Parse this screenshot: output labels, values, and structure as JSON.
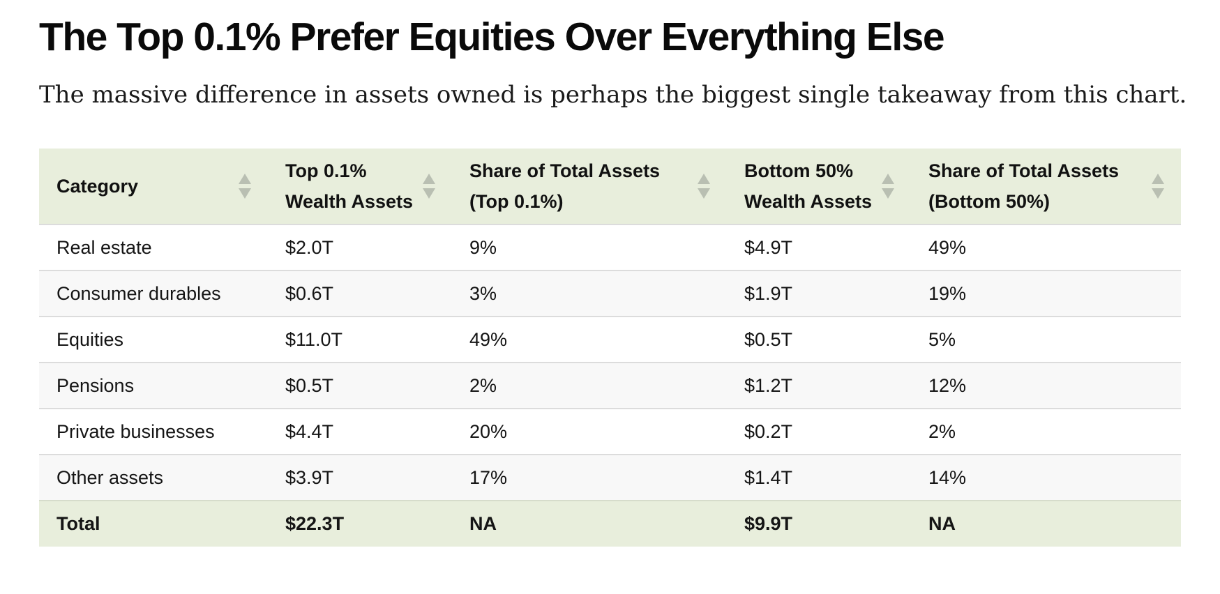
{
  "title": "The Top 0.1% Prefer Equities Over Everything Else",
  "subtitle": "The massive difference in assets owned is perhaps the biggest single takeaway from this chart.",
  "table": {
    "headers": [
      {
        "line1": "Category",
        "line2": ""
      },
      {
        "line1": "Top 0.1%",
        "line2": "Wealth Assets"
      },
      {
        "line1": "Share of Total Assets",
        "line2": "(Top 0.1%)"
      },
      {
        "line1": "Bottom 50%",
        "line2": "Wealth Assets"
      },
      {
        "line1": "Share of Total Assets",
        "line2": "(Bottom 50%)"
      }
    ],
    "rows": [
      [
        "Real estate",
        "$2.0T",
        "9%",
        "$4.9T",
        "49%"
      ],
      [
        "Consumer durables",
        "$0.6T",
        "3%",
        "$1.9T",
        "19%"
      ],
      [
        "Equities",
        "$11.0T",
        "49%",
        "$0.5T",
        "5%"
      ],
      [
        "Pensions",
        "$0.5T",
        "2%",
        "$1.2T",
        "12%"
      ],
      [
        "Private businesses",
        "$4.4T",
        "20%",
        "$0.2T",
        "2%"
      ],
      [
        "Other assets",
        "$3.9T",
        "17%",
        "$1.4T",
        "14%"
      ]
    ],
    "total": [
      "Total",
      "$22.3T",
      "NA",
      "$9.9T",
      "NA"
    ]
  },
  "icons": {
    "sort": "sort-up-down-icon"
  },
  "colors": {
    "header_bg": "#e8eedc",
    "total_bg": "#e8eedc",
    "row_alt_bg": "#f8f8f8",
    "sort_icon": "#b9bfb2"
  }
}
